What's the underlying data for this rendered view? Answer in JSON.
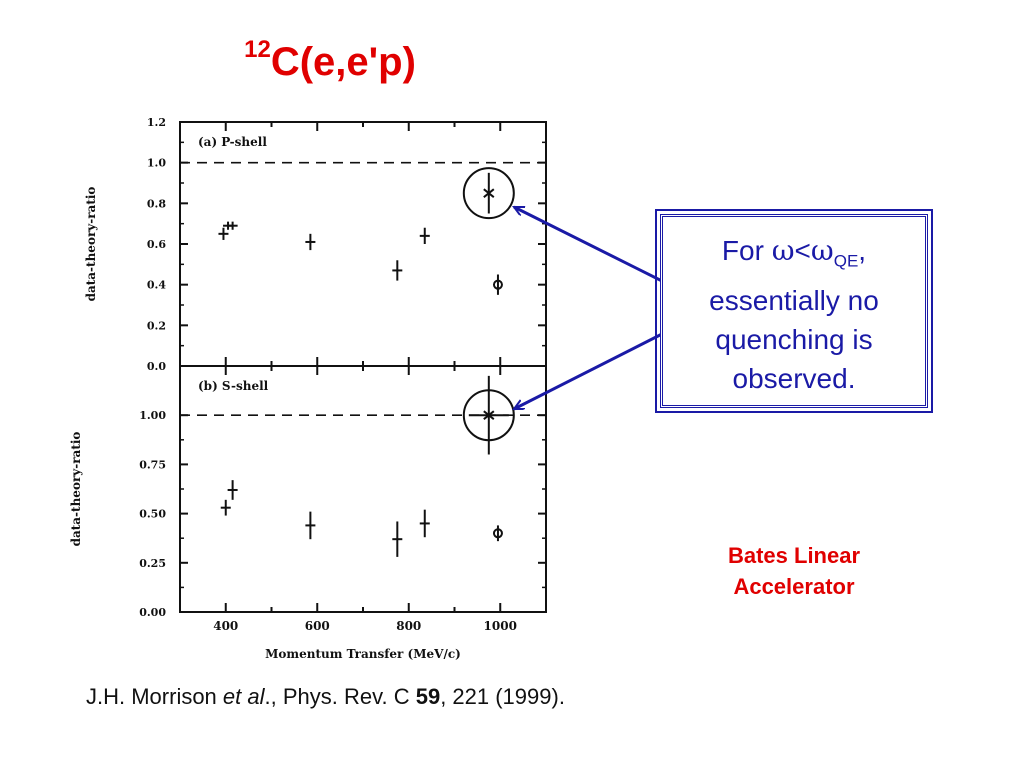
{
  "slide": {
    "title_sup": "12",
    "title_main": "C(e,e'p)",
    "callout": {
      "prefix": "For ",
      "omega": "ω",
      "lt": "<",
      "qe_sub": "QE",
      "comma": ",",
      "line2": "essentially no",
      "line3": "quenching is",
      "line4": "observed."
    },
    "bates_line1": "Bates Linear",
    "bates_line2": "Accelerator",
    "citation": {
      "authors": "J.H. Morrison ",
      "etal": "et al",
      "journal": "., Phys. Rev. C ",
      "volume": "59",
      "rest": ", 221 (1999)."
    },
    "colors": {
      "title": "#e00000",
      "callout": "#1a1aa6",
      "arrow": "#1a1aa6"
    }
  },
  "chart_data": [
    {
      "type": "scatter",
      "panel_label": "(a) P-shell",
      "ylabel": "data-theory-ratio",
      "xlim": [
        300,
        1100
      ],
      "ylim": [
        0,
        1.2
      ],
      "yticks": [
        "0.0",
        "0.2",
        "0.4",
        "0.6",
        "0.8",
        "1.0",
        "1.2"
      ],
      "reference_line": 1.0,
      "points": [
        {
          "x": 395,
          "y": 0.65,
          "err": 0.03,
          "marker": "plus"
        },
        {
          "x": 405,
          "y": 0.69,
          "err": 0.02,
          "marker": "plus"
        },
        {
          "x": 415,
          "y": 0.69,
          "err": 0.02,
          "marker": "plus"
        },
        {
          "x": 585,
          "y": 0.61,
          "err": 0.04,
          "marker": "plus"
        },
        {
          "x": 775,
          "y": 0.47,
          "err": 0.05,
          "marker": "plus"
        },
        {
          "x": 835,
          "y": 0.64,
          "err": 0.04,
          "marker": "plus"
        },
        {
          "x": 975,
          "y": 0.85,
          "err": 0.1,
          "marker": "x",
          "circled": true
        },
        {
          "x": 995,
          "y": 0.4,
          "err": 0.05,
          "marker": "circle"
        }
      ]
    },
    {
      "type": "scatter",
      "panel_label": "(b) S-shell",
      "ylabel": "data-theory-ratio",
      "xlabel": "Momentum Transfer (MeV/c)",
      "xlim": [
        300,
        1100
      ],
      "ylim": [
        0,
        1.25
      ],
      "xticks": [
        "400",
        "600",
        "800",
        "1000"
      ],
      "yticks": [
        "0.00",
        "0.25",
        "0.50",
        "0.75",
        "1.00"
      ],
      "reference_line": 1.0,
      "points": [
        {
          "x": 400,
          "y": 0.53,
          "err": 0.04,
          "marker": "plus"
        },
        {
          "x": 415,
          "y": 0.62,
          "err": 0.05,
          "marker": "plus"
        },
        {
          "x": 585,
          "y": 0.44,
          "err": 0.07,
          "marker": "plus"
        },
        {
          "x": 775,
          "y": 0.37,
          "err": 0.09,
          "marker": "plus"
        },
        {
          "x": 835,
          "y": 0.45,
          "err": 0.07,
          "marker": "plus"
        },
        {
          "x": 975,
          "y": 1.0,
          "err": 0.2,
          "marker": "x",
          "circled": true
        },
        {
          "x": 995,
          "y": 0.4,
          "err": 0.04,
          "marker": "circle"
        }
      ]
    }
  ]
}
